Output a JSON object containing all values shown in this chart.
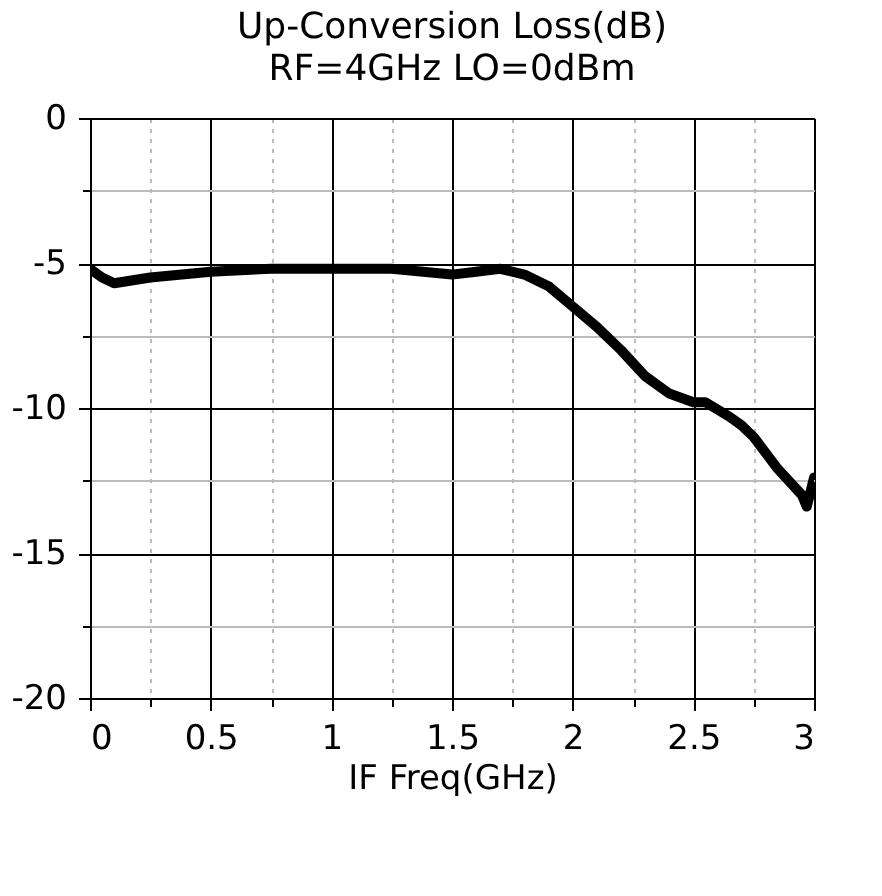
{
  "chart_data": {
    "type": "line",
    "title": "Up-Conversion Loss(dB)",
    "subtitle": "RF=4GHz LO=0dBm",
    "xlabel": "IF Freq(GHz)",
    "x": [
      0,
      0.05,
      0.1,
      0.25,
      0.5,
      0.75,
      1.0,
      1.25,
      1.5,
      1.6,
      1.7,
      1.8,
      1.9,
      2.0,
      2.1,
      2.2,
      2.3,
      2.4,
      2.5,
      2.55,
      2.65,
      2.7,
      2.75,
      2.85,
      2.95,
      2.97,
      3.0
    ],
    "series": [
      {
        "color": "#000000",
        "values": [
          -5.2,
          -5.5,
          -5.7,
          -5.5,
          -5.3,
          -5.2,
          -5.2,
          -5.2,
          -5.4,
          -5.3,
          -5.2,
          -5.4,
          -5.8,
          -6.5,
          -7.2,
          -8.0,
          -8.9,
          -9.5,
          -9.8,
          -9.8,
          -10.3,
          -10.6,
          -11.0,
          -12.1,
          -13.0,
          -13.4,
          -12.4
        ]
      }
    ],
    "xlim": [
      0,
      3
    ],
    "ylim": [
      -20,
      0
    ],
    "xticks": [
      0,
      {
        "value": 0.25,
        "label": null
      },
      0.5,
      {
        "value": 0.75,
        "label": null
      },
      1,
      {
        "value": 1.25,
        "label": null
      },
      1.5,
      {
        "value": 1.75,
        "label": null
      },
      2,
      {
        "value": 2.25,
        "label": null
      },
      2.5,
      {
        "value": 2.75,
        "label": null
      },
      3
    ],
    "yticks": [
      -20,
      {
        "value": -17.5,
        "label": null
      },
      -15,
      {
        "value": -12.5,
        "label": null
      },
      -10,
      {
        "value": -7.5,
        "label": null
      },
      -5,
      {
        "value": -2.5,
        "label": null
      },
      0
    ],
    "grid": true,
    "marker": "none",
    "line_style": "solid"
  }
}
